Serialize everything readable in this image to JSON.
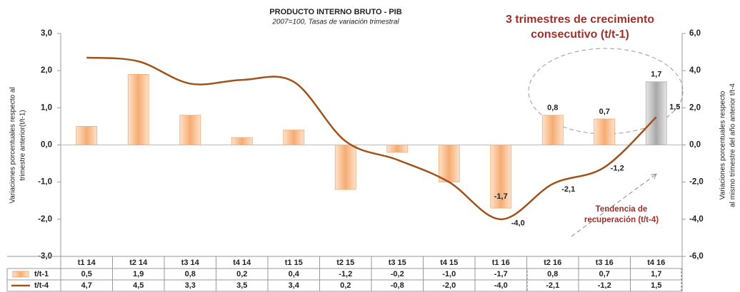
{
  "chart_data": {
    "type": "bar_line",
    "title": "PRODUCTO INTERNO BRUTO - PIB",
    "subtitle": "2007=100, Tasas de variación trimestral",
    "y_label": [
      "Variaciones porcentuales respecto al",
      "trimestre anterior(t/t-1)"
    ],
    "y2_label": [
      "Variaciones porcentuales respecto",
      "al mismo trimestre del año anterior t/t-4"
    ],
    "annotations": [
      {
        "lines": [
          "3 trimestres de crecimiento",
          "consecutivo (t/t-1)"
        ],
        "color": "#a0302a"
      },
      {
        "lines": [
          "Tendencia de",
          "recuperación (t/t-4)"
        ],
        "color": "#a0302a"
      }
    ],
    "categories": [
      "t1 14",
      "t2 14",
      "t3 14",
      "t4 14",
      "t1 15",
      "t2 15",
      "t3 15",
      "t4 15",
      "t1 16",
      "t2 16",
      "t3 16",
      "t4 16"
    ],
    "series": [
      {
        "name": "t/t-1",
        "type": "bar",
        "color": "#f6ab72",
        "colors": [
          "#f6ab72",
          "#f6ab72",
          "#f6ab72",
          "#f6ab72",
          "#f6ab72",
          "#f6ab72",
          "#f6ab72",
          "#f6ab72",
          "#f6ab72",
          "#f6ab72",
          "#f6ab72",
          "#b0b0b0"
        ],
        "values": [
          0.5,
          1.9,
          0.8,
          0.2,
          0.4,
          -1.2,
          -0.2,
          -1.0,
          -1.7,
          0.8,
          0.7,
          1.7
        ],
        "value_labels": [
          "0,5",
          "1,9",
          "0,8",
          "0,2",
          "0,4",
          "-1,2",
          "-0,2",
          "-1,0",
          "-1,7",
          "0,8",
          "0,7",
          "1,7"
        ]
      },
      {
        "name": "t/t-4",
        "type": "line",
        "axis": "y2",
        "color": "#a0521b",
        "values": [
          4.7,
          4.5,
          3.3,
          3.5,
          3.4,
          0.2,
          -0.8,
          -2.0,
          -4.0,
          -2.1,
          -1.2,
          1.5
        ],
        "value_labels": [
          "4,7",
          "4,5",
          "3,3",
          "3,5",
          "3,4",
          "0,2",
          "-0,8",
          "-2,0",
          "-4,0",
          "-2,1",
          "-1,2",
          "1,5"
        ]
      }
    ],
    "ylim": [
      -3,
      3
    ],
    "yticks": [
      {
        "value": -3,
        "label": "-3,0"
      },
      {
        "value": -2,
        "label": "-2,0"
      },
      {
        "value": -1,
        "label": "-1,0"
      },
      {
        "value": 0,
        "label": "0,0"
      },
      {
        "value": 1,
        "label": "1,0"
      },
      {
        "value": 2,
        "label": "2,0"
      },
      {
        "value": 3,
        "label": "3,0"
      }
    ],
    "y2lim": [
      -6,
      6
    ],
    "y2ticks": [
      {
        "value": -6,
        "label": "-6,0"
      },
      {
        "value": -4,
        "label": "-4,0"
      },
      {
        "value": -2,
        "label": "-2,0"
      },
      {
        "value": 0,
        "label": "0,0"
      },
      {
        "value": 2,
        "label": "2,0"
      },
      {
        "value": 4,
        "label": "4,0"
      },
      {
        "value": 6,
        "label": "6,0"
      }
    ]
  }
}
